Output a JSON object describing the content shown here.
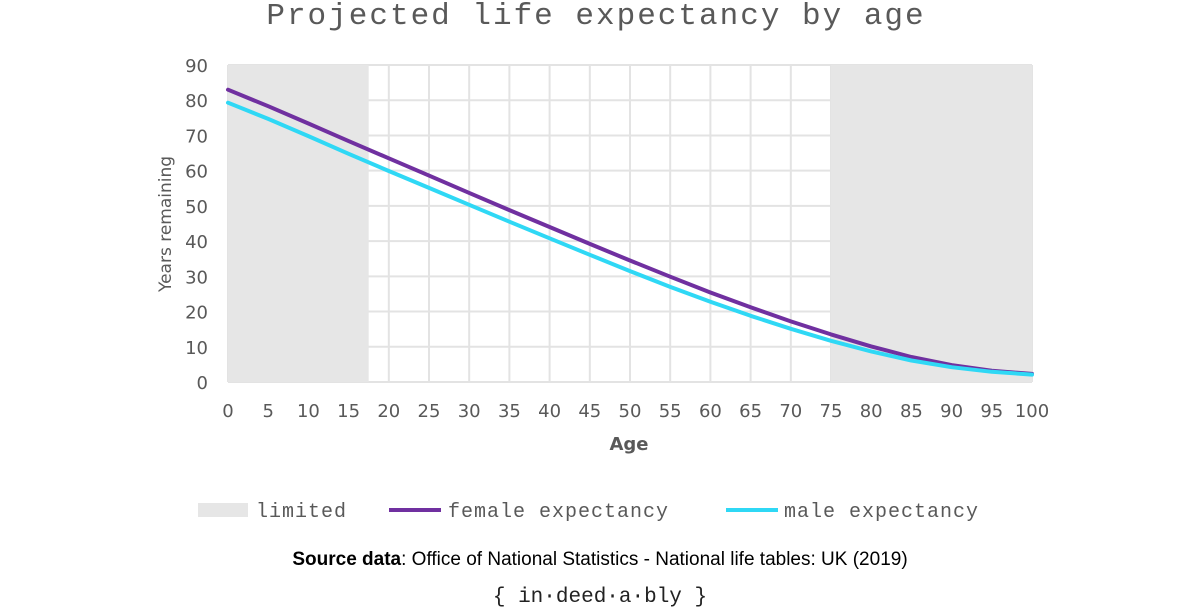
{
  "chart_data": {
    "type": "line",
    "title": "Projected life expectancy by age",
    "xlabel": "Age",
    "ylabel": "Years remaining",
    "xlim": [
      0,
      100
    ],
    "ylim": [
      0,
      90
    ],
    "x_ticks": [
      0,
      5,
      10,
      15,
      20,
      25,
      30,
      35,
      40,
      45,
      50,
      55,
      60,
      65,
      70,
      75,
      80,
      85,
      90,
      95,
      100
    ],
    "y_ticks": [
      0,
      10,
      20,
      30,
      40,
      50,
      60,
      70,
      80,
      90
    ],
    "grid": true,
    "x_grid_step": 5,
    "y_grid_step": 10,
    "shaded_regions": [
      {
        "name": "limited",
        "from": 0,
        "to": 17.5,
        "color": "#e6e6e6"
      },
      {
        "name": "limited",
        "from": 75,
        "to": 100,
        "color": "#e6e6e6"
      }
    ],
    "x": [
      0,
      5,
      10,
      15,
      20,
      25,
      30,
      35,
      40,
      45,
      50,
      55,
      60,
      65,
      70,
      75,
      80,
      85,
      90,
      95,
      100
    ],
    "series": [
      {
        "name": "female expectancy",
        "color": "#7030a0",
        "values": [
          83.0,
          78.3,
          73.4,
          68.4,
          63.5,
          58.6,
          53.7,
          48.8,
          44.0,
          39.2,
          34.5,
          29.9,
          25.4,
          21.2,
          17.2,
          13.5,
          10.1,
          7.1,
          4.8,
          3.2,
          2.3
        ]
      },
      {
        "name": "male expectancy",
        "color": "#2fd8f5",
        "values": [
          79.3,
          74.7,
          69.8,
          64.8,
          59.9,
          55.1,
          50.3,
          45.5,
          40.8,
          36.1,
          31.5,
          27.0,
          22.8,
          18.8,
          15.1,
          11.7,
          8.7,
          6.1,
          4.2,
          2.9,
          2.1
        ]
      }
    ],
    "legend": {
      "placement": "bottom",
      "entries": [
        {
          "label": "limited",
          "kind": "area",
          "color": "#e6e6e6"
        },
        {
          "label": "female expectancy",
          "kind": "line",
          "color": "#7030a0"
        },
        {
          "label": "male expectancy",
          "kind": "line",
          "color": "#2fd8f5"
        }
      ]
    }
  },
  "footer": {
    "source_label": "Source data",
    "source_text": ": Office of National Statistics - National life tables: UK (2019)",
    "brand": "{ in·deed·a·bly }"
  }
}
